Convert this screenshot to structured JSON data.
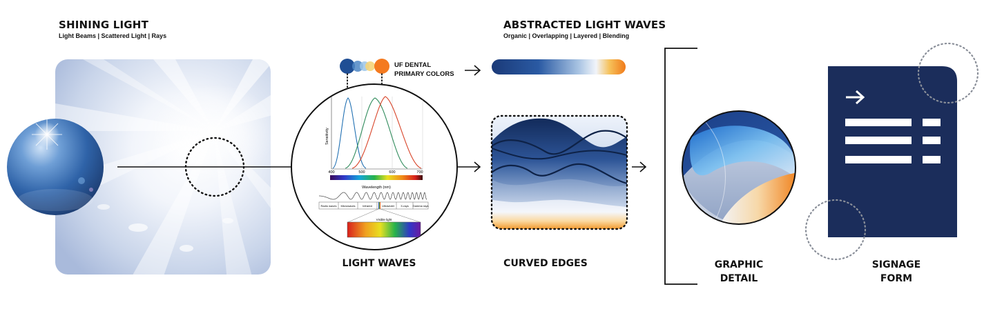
{
  "sections": {
    "shining_light": {
      "title": "SHINING LIGHT",
      "subtitle": "Light Beams | Scattered Light | Rays"
    },
    "abstracted_light_waves": {
      "title": "ABSTRACTED LIGHT WAVES",
      "subtitle": "Organic | Overlapping | Layered | Blending"
    },
    "primary_colors": {
      "line1": "UF DENTAL",
      "line2": "PRIMARY COLORS",
      "colors": [
        "#1f4e94",
        "#f47a20"
      ]
    }
  },
  "labels": {
    "light_waves": "LIGHT WAVES",
    "curved_edges": "CURVED EDGES",
    "graphic_detail_line1": "GRAPHIC",
    "graphic_detail_line2": "DETAIL",
    "signage_form_line1": "SIGNAGE",
    "signage_form_line2": "FORM"
  },
  "spectrum_chart": {
    "x_ticks": [
      "400",
      "500",
      "600",
      "700"
    ],
    "ylabel": "Sensitivity",
    "xlabel": "Wavelength (nm)",
    "bands": [
      "Radio waves",
      "Microwaves",
      "Infrared",
      "Ultraviolet",
      "X-rays",
      "Gamma rays"
    ],
    "visible_label": "Visible light"
  },
  "colors": {
    "navy": "#1b2d5b",
    "uf_blue": "#1f4e94",
    "uf_orange": "#f47a20"
  }
}
